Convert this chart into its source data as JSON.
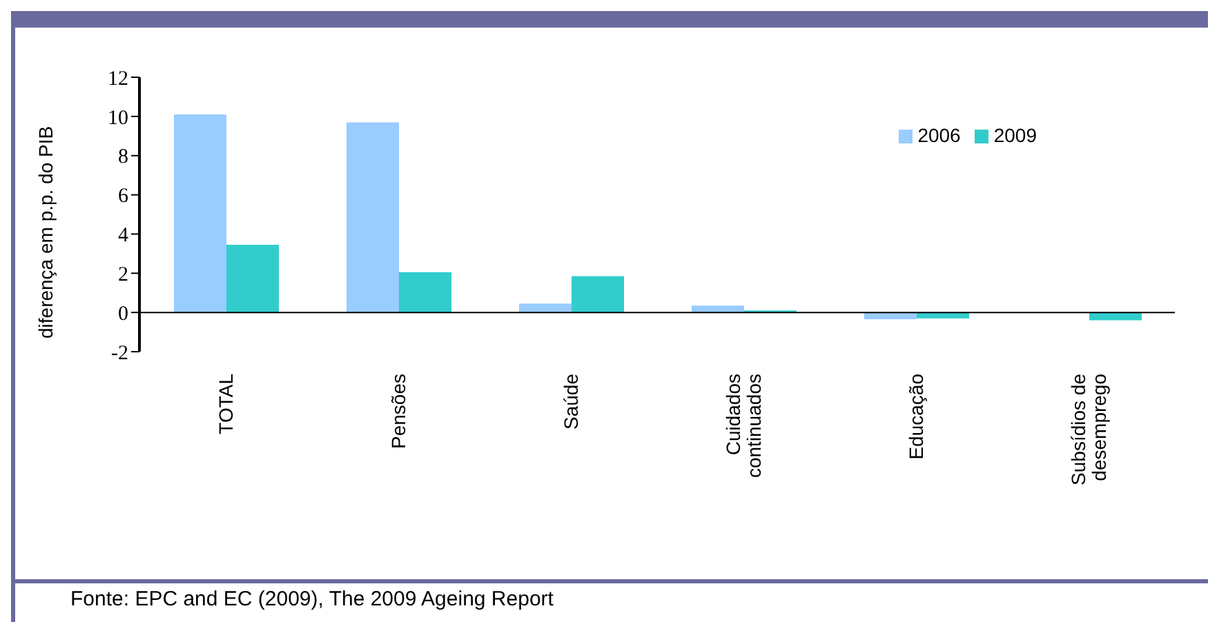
{
  "chart_data": {
    "type": "bar",
    "ylabel": "diferença em p.p. do PIB",
    "categories": [
      "TOTAL",
      "Pensões",
      "Saúde",
      "Cuidados continuados",
      "Educação",
      "Subsídios de desemprego"
    ],
    "series": [
      {
        "name": "2006",
        "color": "#99ccff",
        "values": [
          10.1,
          9.7,
          0.45,
          0.35,
          -0.35,
          0
        ]
      },
      {
        "name": "2009",
        "color": "#33cccc",
        "values": [
          3.45,
          2.05,
          1.85,
          0.1,
          -0.3,
          -0.4
        ]
      }
    ],
    "ylim": [
      -2,
      12
    ],
    "yticks": [
      -2,
      0,
      2,
      4,
      6,
      8,
      10,
      12
    ],
    "legend": "top right",
    "annotations": [
      "Fonte: EPC and EC (2009), The 2009 Ageing Report"
    ]
  }
}
